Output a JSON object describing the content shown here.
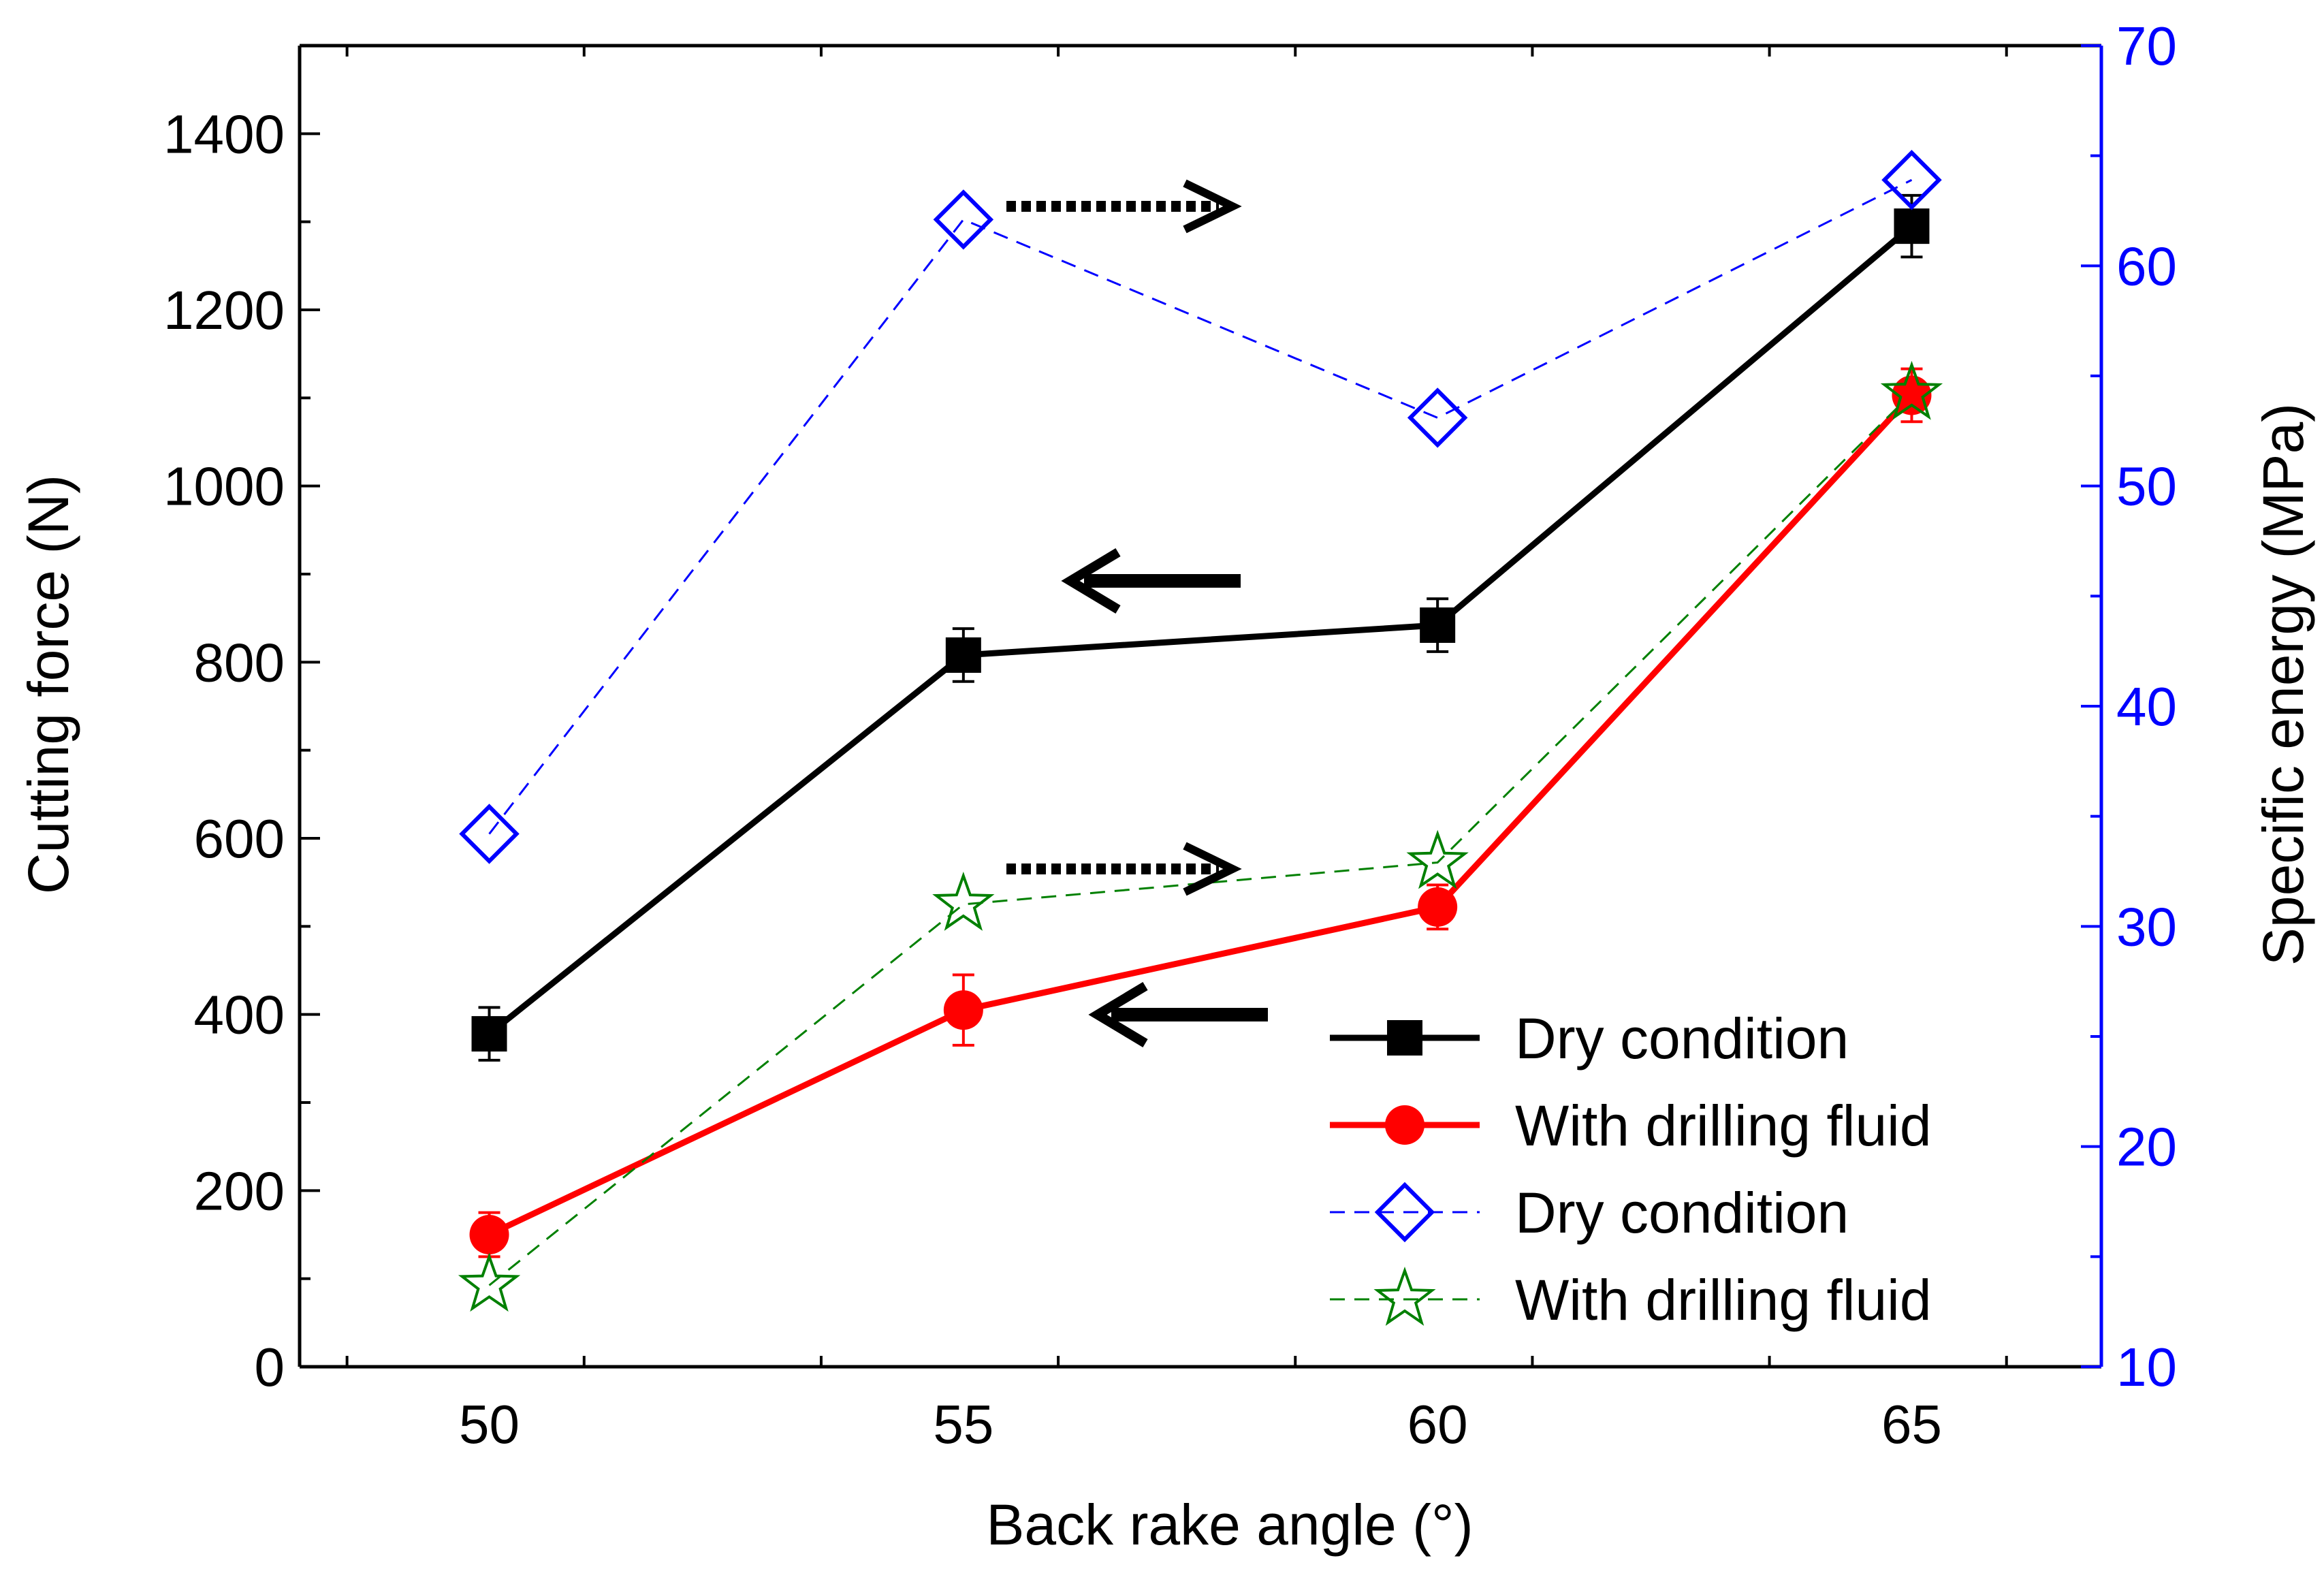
{
  "chart_data": {
    "type": "line",
    "xlabel": "Back rake angle (°)",
    "ylabel_left": "Cutting force (N)",
    "ylabel_right": "Specific energy (MPa)",
    "x": [
      50,
      55,
      60,
      65
    ],
    "xlim": [
      48,
      67
    ],
    "xticks": [
      50,
      55,
      60,
      65
    ],
    "xtick_labels": [
      "50",
      "55",
      "60",
      "65"
    ],
    "ylim_left": [
      0,
      1500
    ],
    "yticks_left": [
      0,
      200,
      400,
      600,
      800,
      1000,
      1200,
      1400
    ],
    "ytick_labels_left": [
      "0",
      "200",
      "400",
      "600",
      "800",
      "1000",
      "1200",
      "1400"
    ],
    "ylim_right": [
      10,
      70
    ],
    "yticks_right": [
      10,
      20,
      30,
      40,
      50,
      60,
      70
    ],
    "ytick_labels_right": [
      "10",
      "20",
      "30",
      "40",
      "50",
      "60",
      "70"
    ],
    "series": [
      {
        "name": "Dry condition",
        "axis": "left",
        "marker": "square",
        "line_style": "solid",
        "color": "#000000",
        "values": [
          378,
          808,
          842,
          1295
        ],
        "errors": [
          30,
          30,
          30,
          35
        ]
      },
      {
        "name": "With drilling fluid",
        "axis": "left",
        "marker": "circle",
        "line_style": "solid",
        "color": "#ff0000",
        "values": [
          150,
          405,
          522,
          1103
        ],
        "errors": [
          25,
          40,
          25,
          30
        ]
      },
      {
        "name": "Dry condition",
        "axis": "right",
        "marker": "diamond",
        "line_style": "dashed",
        "color": "#0000ff",
        "values": [
          34.2,
          62.1,
          53.1,
          63.9
        ]
      },
      {
        "name": "With drilling fluid",
        "axis": "right",
        "marker": "star",
        "line_style": "dashed",
        "color": "#008000",
        "values": [
          13.7,
          31.0,
          32.9,
          54.2
        ]
      }
    ],
    "annotations": [
      {
        "type": "arrow",
        "style": "solid",
        "direction": "left",
        "meaning": "Dry condition force on left axis"
      },
      {
        "type": "arrow",
        "style": "dotted",
        "direction": "right",
        "meaning": "Dry condition energy on right axis"
      },
      {
        "type": "arrow",
        "style": "solid",
        "direction": "left",
        "meaning": "With drilling fluid force on left axis"
      },
      {
        "type": "arrow",
        "style": "dotted",
        "direction": "right",
        "meaning": "With drilling fluid energy on right axis"
      }
    ],
    "grid": false,
    "legend_position": "bottom-right"
  },
  "colors": {
    "axis": "#000000",
    "right_axis": "#0000ff"
  }
}
